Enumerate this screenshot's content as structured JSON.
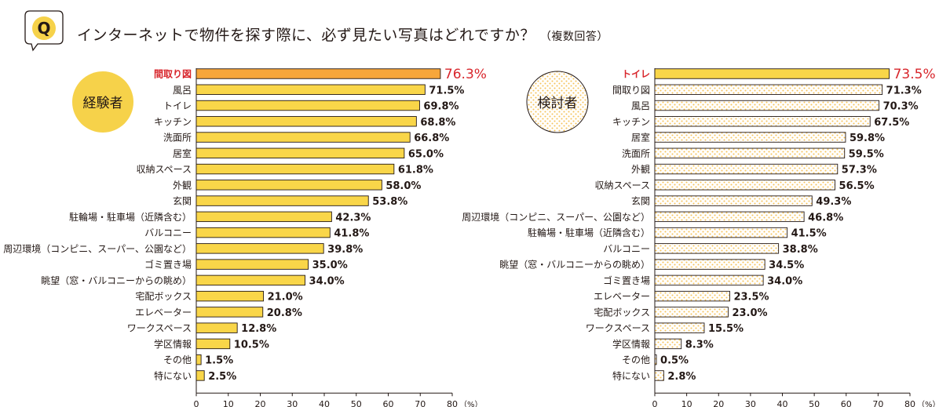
{
  "question": {
    "badge": "Q",
    "title": "インターネットで物件を探す際に、必ず見たい写真はどれですか？",
    "note": "（複数回答）"
  },
  "colors": {
    "bar_fill": "#f9d649",
    "bar_top": "#f7a63a",
    "top_label": "#d8262c",
    "dot_fill": "#f6c35a",
    "stroke": "#231815",
    "badge_fill": "#f6d24a"
  },
  "chart_data": [
    {
      "type": "bar",
      "orientation": "horizontal",
      "group_label": "経験者",
      "categories": [
        "間取り図",
        "風呂",
        "トイレ",
        "キッチン",
        "洗面所",
        "居室",
        "収納スペース",
        "外観",
        "玄関",
        "駐輪場・駐車場（近隣含む）",
        "バルコニー",
        "周辺環境（コンピニ、スーパー、公園など）",
        "ゴミ置き場",
        "眺望（窓・バルコニーからの眺め）",
        "宅配ボックス",
        "エレベーター",
        "ワークスペース",
        "学区情報",
        "その他",
        "特にない"
      ],
      "values": [
        76.3,
        71.5,
        69.8,
        68.8,
        66.8,
        65.0,
        61.8,
        58.0,
        53.8,
        42.3,
        41.8,
        39.8,
        35.0,
        34.0,
        21.0,
        20.8,
        12.8,
        10.5,
        1.5,
        2.5
      ],
      "value_labels": [
        "76.3%",
        "71.5%",
        "69.8%",
        "68.8%",
        "66.8%",
        "65.0%",
        "61.8%",
        "58.0%",
        "53.8%",
        "42.3%",
        "41.8%",
        "39.8%",
        "35.0%",
        "34.0%",
        "21.0%",
        "20.8%",
        "12.8%",
        "10.5%",
        "1.5%",
        "2.5%"
      ],
      "highlight_index": 0,
      "xlim": [
        0,
        80
      ],
      "xticks": [
        "0",
        "10",
        "20",
        "30",
        "40",
        "50",
        "60",
        "70",
        "80"
      ],
      "unit": "（%）"
    },
    {
      "type": "bar",
      "orientation": "horizontal",
      "group_label": "検討者",
      "categories": [
        "トイレ",
        "間取り図",
        "風呂",
        "キッチン",
        "居室",
        "洗面所",
        "外観",
        "収納スペース",
        "玄関",
        "周辺環境（コンピニ、スーパー、公園など）",
        "駐輪場・駐車場（近隣含む）",
        "バルコニー",
        "眺望（窓・バルコニーからの眺め）",
        "ゴミ置き場",
        "エレベーター",
        "宅配ボックス",
        "ワークスペース",
        "学区情報",
        "その他",
        "特にない"
      ],
      "values": [
        73.5,
        71.3,
        70.3,
        67.5,
        59.8,
        59.5,
        57.3,
        56.5,
        49.3,
        46.8,
        41.5,
        38.8,
        34.5,
        34.0,
        23.5,
        23.0,
        15.5,
        8.3,
        0.5,
        2.8
      ],
      "value_labels": [
        "73.5%",
        "71.3%",
        "70.3%",
        "67.5%",
        "59.8%",
        "59.5%",
        "57.3%",
        "56.5%",
        "49.3%",
        "46.8%",
        "41.5%",
        "38.8%",
        "34.5%",
        "34.0%",
        "23.5%",
        "23.0%",
        "15.5%",
        "8.3%",
        "0.5%",
        "2.8%"
      ],
      "highlight_index": 0,
      "xlim": [
        0,
        80
      ],
      "xticks": [
        "0",
        "10",
        "20",
        "30",
        "40",
        "50",
        "60",
        "70",
        "80"
      ],
      "unit": "（%）"
    }
  ]
}
